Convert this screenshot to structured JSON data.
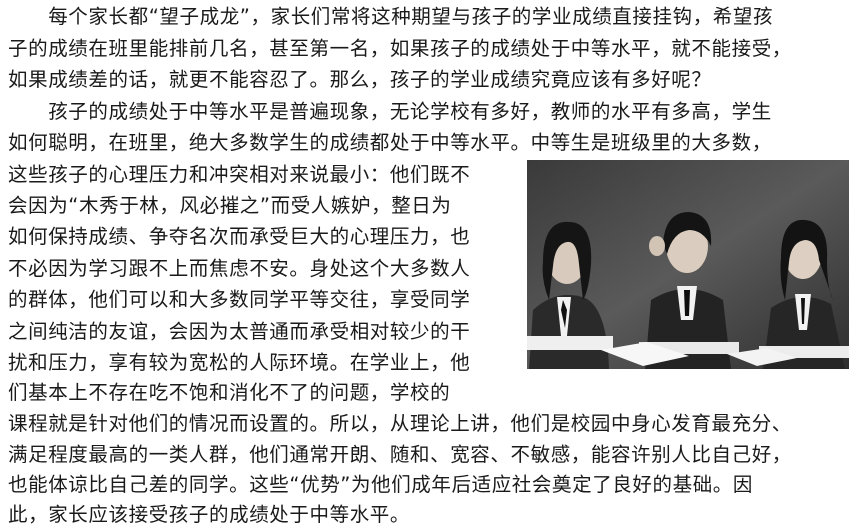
{
  "article": {
    "lines": [
      "　　每个家长都“望子成龙”，家长们常将这种期望与孩子的学业成绩直接挂钩，希望孩",
      "子的成绩在班里能排前几名，甚至第一名，如果孩子的成绩处于中等水平，就不能接受，",
      "如果成绩差的话，就更不能容忍了。那么，孩子的学业成绩究竟应该有多好呢？",
      "　　孩子的成绩处于中等水平是普遍现象，无论学校有多好，教师的水平有多高，学生",
      "如何聪明，在班里，绝大多数学生的成绩都处于中等水平。中等生是班级里的大多数，",
      "这些孩子的心理压力和冲突相对来说最小：他们既不",
      "会因为“木秀于林，风必摧之”而受人嫉妒，整日为",
      "如何保持成绩、争夺名次而承受巨大的心理压力，也",
      "不必因为学习跟不上而焦虑不安。身处这个大多数人",
      "的群体，他们可以和大多数同学平等交往，享受同学",
      "之间纯洁的友谊，会因为太普通而承受相对较少的干",
      "扰和压力，享有较为宽松的人际环境。在学业上，他",
      "们基本上不存在吃不饱和消化不了的问题，学校的",
      "课程就是针对他们的情况而设置的。所以，从理论上讲，他们是校园中身心发育最充分、",
      "满足程度最高的一类人群，他们通常开朗、随和、宽容、不敏感，能容许别人比自己好，",
      "也能体谅比自己差的同学。这些“优势”为他们成年后适应社会奠定了良好的基础。因",
      "此，家长应该接受孩子的成绩处于中等水平。"
    ]
  }
}
